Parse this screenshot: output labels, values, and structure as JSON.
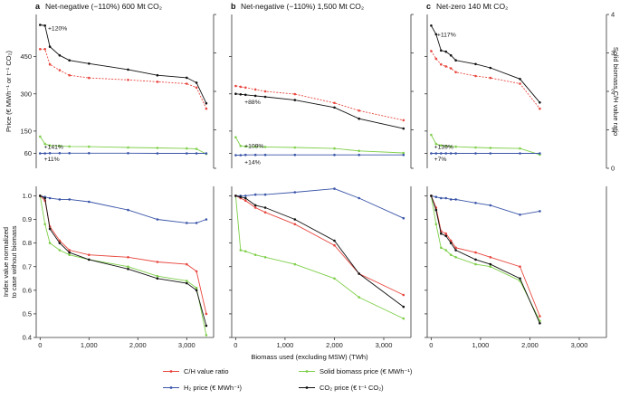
{
  "chart_data": {
    "type": "line",
    "x_axis_label": "Biomass used (excluding MSW) (TWh)",
    "x_ticks": [
      0,
      1000,
      2000,
      3000
    ],
    "x_tick_labels": [
      "0",
      "1,000",
      "2,000",
      "3,000"
    ],
    "top_y_label": "Price (€ MWh⁻¹ or t⁻¹ CO₂)",
    "top_y_ticks": [
      60,
      150,
      300,
      450
    ],
    "top_ylim": [
      0,
      620
    ],
    "right_y_label": "Solid biomass C/H value ratio",
    "right_y_ticks": [
      0,
      1,
      2,
      3,
      4
    ],
    "right_ylim": [
      0,
      4
    ],
    "bottom_y_label_line1": "Index value normalized",
    "bottom_y_label_line2": "to case without biomass",
    "bottom_y_ticks": [
      0.4,
      0.5,
      0.6,
      0.7,
      0.8,
      0.9,
      1.0
    ],
    "bottom_y_tick_labels": [
      "0.4",
      "0.5",
      "0.6",
      "0.7",
      "0.8",
      "0.9",
      "1.0"
    ],
    "bottom_ylim": [
      0.4,
      1.04
    ],
    "colors": {
      "ch": "#e8473f",
      "solid": "#7fcf4a",
      "h2": "#3a55a8",
      "co2": "#111111"
    },
    "legend": [
      {
        "key": "ch",
        "label": "C/H value ratio"
      },
      {
        "key": "solid",
        "label": "Solid biomass price (€ MWh⁻¹)"
      },
      {
        "key": "h2",
        "label": "H₂ price (€ MWh⁻¹)"
      },
      {
        "key": "co2",
        "label": "CO₂ price (€ t⁻¹ CO₂)"
      }
    ],
    "panels": [
      {
        "letter": "a",
        "title": "Net-negative (−110%) 600 Mt CO₂",
        "x": [
          0,
          100,
          200,
          400,
          600,
          1000,
          1800,
          2400,
          3000,
          3200,
          3400
        ],
        "top": {
          "co2": [
            578,
            575,
            490,
            455,
            435,
            422,
            398,
            375,
            365,
            345,
            262
          ],
          "ch": [
            3.1,
            3.1,
            2.7,
            2.55,
            2.42,
            2.35,
            2.3,
            2.25,
            2.2,
            2.1,
            1.55
          ],
          "solid": [
            128,
            98,
            92,
            90,
            88,
            87,
            84,
            82,
            80,
            78,
            58
          ],
          "h2": [
            60,
            60,
            61,
            61,
            61,
            61,
            61,
            60,
            60,
            60,
            60
          ]
        },
        "bottom": {
          "co2": [
            1.0,
            0.99,
            0.86,
            0.8,
            0.76,
            0.73,
            0.69,
            0.65,
            0.63,
            0.6,
            0.45
          ],
          "ch": [
            1.0,
            0.98,
            0.87,
            0.81,
            0.77,
            0.75,
            0.74,
            0.72,
            0.71,
            0.68,
            0.5
          ],
          "solid": [
            1.0,
            0.88,
            0.8,
            0.77,
            0.75,
            0.73,
            0.7,
            0.66,
            0.64,
            0.61,
            0.41
          ],
          "h2": [
            1.0,
            0.995,
            0.99,
            0.985,
            0.985,
            0.975,
            0.94,
            0.9,
            0.885,
            0.885,
            0.9
          ]
        },
        "annotations": [
          {
            "text": "+120%",
            "x": 160,
            "top_y": 565
          },
          {
            "text": "+141%",
            "x": 80,
            "top_y": 88
          },
          {
            "text": "+11%",
            "x": 80,
            "top_y": 38
          }
        ]
      },
      {
        "letter": "b",
        "title": "Net-negative (−110%) 1,500 Mt CO₂",
        "x": [
          0,
          100,
          200,
          400,
          600,
          1200,
          2000,
          2500,
          3400
        ],
        "top": {
          "co2": [
            300,
            298,
            296,
            292,
            288,
            275,
            245,
            200,
            160
          ],
          "ch": [
            2.14,
            2.12,
            2.1,
            2.05,
            2.0,
            1.93,
            1.7,
            1.5,
            1.25
          ],
          "solid": [
            125,
            90,
            88,
            87,
            86,
            84,
            80,
            70,
            62
          ],
          "h2": [
            53,
            53,
            54,
            54,
            54,
            54,
            54,
            54,
            54
          ]
        },
        "bottom": {
          "co2": [
            1.0,
            0.995,
            0.99,
            0.96,
            0.95,
            0.9,
            0.81,
            0.67,
            0.53
          ],
          "ch": [
            1.0,
            0.99,
            0.98,
            0.95,
            0.93,
            0.88,
            0.79,
            0.67,
            0.58
          ],
          "solid": [
            1.0,
            0.77,
            0.765,
            0.75,
            0.74,
            0.71,
            0.65,
            0.57,
            0.48
          ],
          "h2": [
            1.0,
            1.0,
            1.0,
            1.005,
            1.005,
            1.015,
            1.03,
            0.99,
            0.905
          ]
        },
        "annotations": [
          {
            "text": "+88%",
            "x": 180,
            "top_y": 268
          },
          {
            "text": "+109%",
            "x": 180,
            "top_y": 92
          },
          {
            "text": "+14%",
            "x": 180,
            "top_y": 26
          }
        ]
      },
      {
        "letter": "c",
        "title": "Net-zero 140 Mt CO₂",
        "x": [
          0,
          100,
          200,
          300,
          400,
          500,
          900,
          1200,
          1800,
          2200
        ],
        "top": {
          "co2": [
            575,
            540,
            475,
            470,
            455,
            435,
            420,
            405,
            360,
            265
          ],
          "ch": [
            3.05,
            2.85,
            2.7,
            2.65,
            2.6,
            2.5,
            2.4,
            2.35,
            2.2,
            1.55
          ],
          "solid": [
            135,
            98,
            92,
            90,
            88,
            87,
            84,
            82,
            80,
            55
          ],
          "h2": [
            60,
            60,
            60,
            60,
            60,
            60,
            60,
            60,
            60,
            60
          ]
        },
        "bottom": {
          "co2": [
            1.0,
            0.94,
            0.84,
            0.83,
            0.8,
            0.77,
            0.73,
            0.71,
            0.65,
            0.46
          ],
          "ch": [
            1.0,
            0.95,
            0.85,
            0.84,
            0.81,
            0.78,
            0.76,
            0.74,
            0.7,
            0.49
          ],
          "solid": [
            1.0,
            0.88,
            0.78,
            0.77,
            0.75,
            0.74,
            0.71,
            0.7,
            0.64,
            0.47
          ],
          "h2": [
            1.0,
            0.995,
            0.99,
            0.99,
            0.985,
            0.985,
            0.97,
            0.96,
            0.92,
            0.935
          ]
        },
        "annotations": [
          {
            "text": "+117%",
            "x": 120,
            "top_y": 540
          },
          {
            "text": "+139%",
            "x": 60,
            "top_y": 88
          },
          {
            "text": "+7%",
            "x": 60,
            "top_y": 38
          }
        ]
      }
    ]
  }
}
